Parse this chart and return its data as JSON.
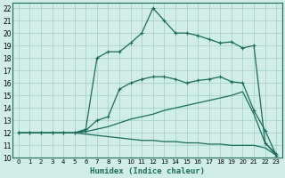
{
  "xlabel": "Humidex (Indice chaleur)",
  "xlim": [
    -0.5,
    23.5
  ],
  "ylim": [
    10,
    22.4
  ],
  "yticks": [
    10,
    11,
    12,
    13,
    14,
    15,
    16,
    17,
    18,
    19,
    20,
    21,
    22
  ],
  "xticks": [
    0,
    1,
    2,
    3,
    4,
    5,
    6,
    7,
    8,
    9,
    10,
    11,
    12,
    13,
    14,
    15,
    16,
    17,
    18,
    19,
    20,
    21,
    22,
    23
  ],
  "bg_color": "#d0ede8",
  "grid_color": "#a0ccC4",
  "line_color": "#1a6b5a",
  "curves": [
    {
      "x": [
        0,
        1,
        2,
        3,
        4,
        5,
        6,
        7,
        8,
        9,
        10,
        11,
        12,
        13,
        14,
        15,
        16,
        17,
        18,
        19,
        20,
        21,
        22,
        23
      ],
      "y": [
        12,
        12,
        12,
        12,
        12,
        12,
        12.3,
        18.0,
        18.5,
        18.5,
        19.2,
        20.0,
        22.0,
        21.0,
        20.0,
        20.0,
        19.8,
        19.5,
        19.2,
        19.3,
        18.8,
        19.0,
        11.2,
        10.3
      ],
      "marker": true
    },
    {
      "x": [
        0,
        1,
        2,
        3,
        4,
        5,
        6,
        7,
        8,
        9,
        10,
        11,
        12,
        13,
        14,
        15,
        16,
        17,
        18,
        19,
        20,
        21,
        22,
        23
      ],
      "y": [
        12,
        12,
        12,
        12,
        12,
        12,
        12.2,
        13.0,
        13.3,
        15.5,
        16.0,
        16.3,
        16.5,
        16.5,
        16.3,
        16.0,
        16.2,
        16.3,
        16.5,
        16.1,
        16.0,
        13.8,
        12.2,
        10.2
      ],
      "marker": true
    },
    {
      "x": [
        0,
        1,
        2,
        3,
        4,
        5,
        6,
        7,
        8,
        9,
        10,
        11,
        12,
        13,
        14,
        15,
        16,
        17,
        18,
        19,
        20,
        21,
        22,
        23
      ],
      "y": [
        12,
        12,
        12,
        12,
        12,
        12,
        12.1,
        12.3,
        12.5,
        12.8,
        13.1,
        13.3,
        13.5,
        13.8,
        14.0,
        14.2,
        14.4,
        14.6,
        14.8,
        15.0,
        15.3,
        13.5,
        11.2,
        10.2
      ],
      "marker": false
    },
    {
      "x": [
        0,
        1,
        2,
        3,
        4,
        5,
        6,
        7,
        8,
        9,
        10,
        11,
        12,
        13,
        14,
        15,
        16,
        17,
        18,
        19,
        20,
        21,
        22,
        23
      ],
      "y": [
        12,
        12,
        12,
        12,
        12,
        12,
        11.9,
        11.8,
        11.7,
        11.6,
        11.5,
        11.4,
        11.4,
        11.3,
        11.3,
        11.2,
        11.2,
        11.1,
        11.1,
        11.0,
        11.0,
        11.0,
        10.8,
        10.2
      ],
      "marker": false
    }
  ]
}
